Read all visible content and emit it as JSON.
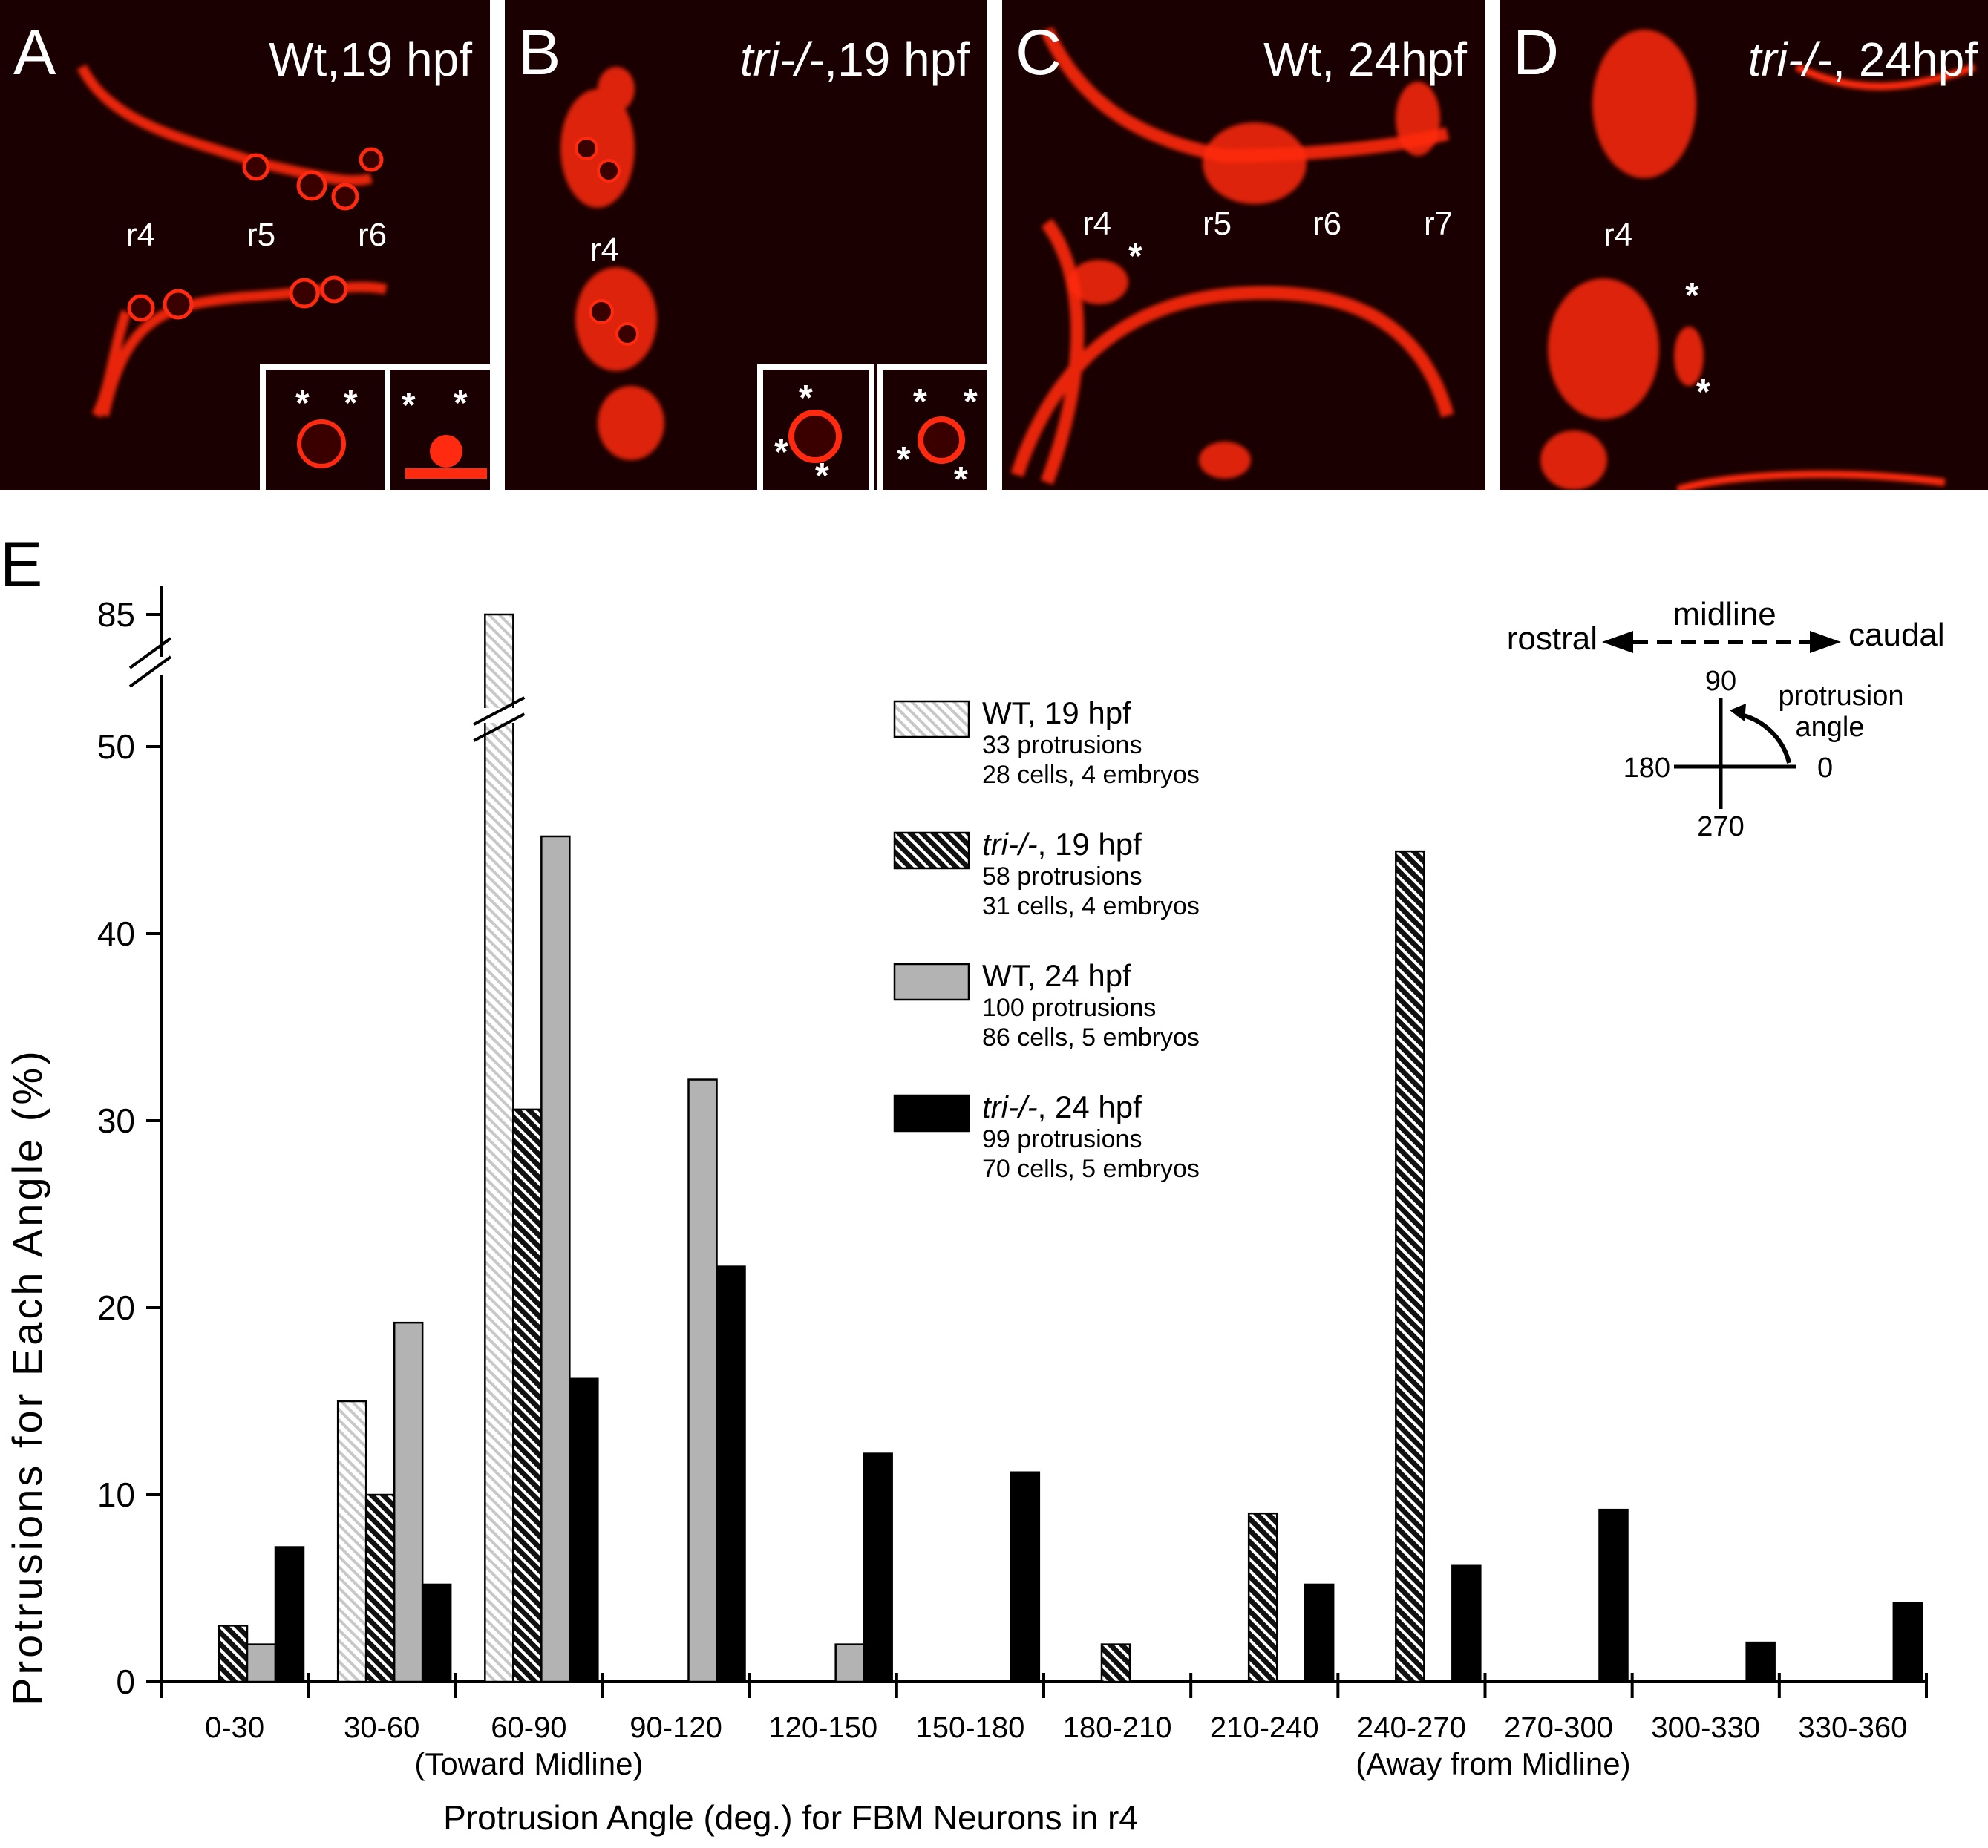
{
  "panels": [
    {
      "letter": "A",
      "title": "Wt,19 hpf",
      "italic": "",
      "regions": [
        "r4",
        "r5",
        "r6"
      ]
    },
    {
      "letter": "B",
      "title_italic": "tri-/-",
      "title": ",19 hpf",
      "regions": [
        "r4"
      ]
    },
    {
      "letter": "C",
      "title": "Wt, 24hpf",
      "regions": [
        "r4",
        "r5",
        "r6",
        "r7"
      ]
    },
    {
      "letter": "D",
      "title_italic": "tri-/-",
      "title": ", 24hpf",
      "regions": [
        "r4"
      ]
    }
  ],
  "star": "*",
  "colors": {
    "fluorescence": "#ff2a10",
    "panel_bg": "#1a0000",
    "wt19": "#d8d8d8",
    "gray": "#b3b3b3",
    "black": "#000000"
  },
  "chart_data": {
    "type": "bar",
    "panel_label": "E",
    "categories": [
      "0-30",
      "30-60",
      "60-90",
      "90-120",
      "120-150",
      "150-180",
      "180-210",
      "210-240",
      "240-270",
      "270-300",
      "300-330",
      "330-360"
    ],
    "category_notes": {
      "60-90": "(Toward Midline)",
      "240-270": "(Away from Midline)"
    },
    "series": [
      {
        "name": "WT, 19 hpf",
        "name_italic": "",
        "name_rest": "WT, 19 hpf",
        "pattern": "light-hatch",
        "sub1": "33 protrusions",
        "sub2": "28 cells, 4 embryos",
        "values": [
          0,
          15,
          85,
          0,
          0,
          0,
          0,
          0,
          0,
          0,
          0,
          0
        ]
      },
      {
        "name": "tri-/-, 19 hpf",
        "name_italic": "tri-/-",
        "name_rest": ", 19 hpf",
        "pattern": "dark-hatch",
        "sub1": "58 protrusions",
        "sub2": "31 cells, 4 embryos",
        "values": [
          3,
          10,
          30.6,
          0,
          0,
          0,
          2,
          9,
          44.4,
          0,
          0,
          0
        ]
      },
      {
        "name": "WT, 24 hpf",
        "name_italic": "",
        "name_rest": "WT, 24 hpf",
        "pattern": "gray",
        "sub1": "100 protrusions",
        "sub2": "86 cells, 5 embryos",
        "values": [
          2,
          19.2,
          45.2,
          32.2,
          2,
          0,
          0,
          0,
          0,
          0,
          0,
          0
        ]
      },
      {
        "name": "tri-/-, 24 hpf",
        "name_italic": "tri-/-",
        "name_rest": ", 24 hpf",
        "pattern": "black",
        "sub1": "99 protrusions",
        "sub2": "70 cells, 5 embryos",
        "values": [
          7.2,
          5.2,
          16.2,
          22.2,
          12.2,
          11.2,
          0,
          5.2,
          6.2,
          9.2,
          2.1,
          4.2
        ]
      }
    ],
    "yticks": [
      0,
      10,
      20,
      30,
      40,
      50,
      85
    ],
    "ylim": [
      0,
      85
    ],
    "axis_break": "between 50 and 85",
    "ylabel": "Protrusions for Each Angle (%)",
    "xlabel": "Protrusion Angle (deg.) for FBM Neurons in r4",
    "orientation_inset": {
      "rostral": "rostral",
      "caudal": "caudal",
      "midline": "midline",
      "a90": "90",
      "a180": "180",
      "a0": "0",
      "a270": "270",
      "protrusion": "protrusion",
      "angle": "angle"
    }
  }
}
